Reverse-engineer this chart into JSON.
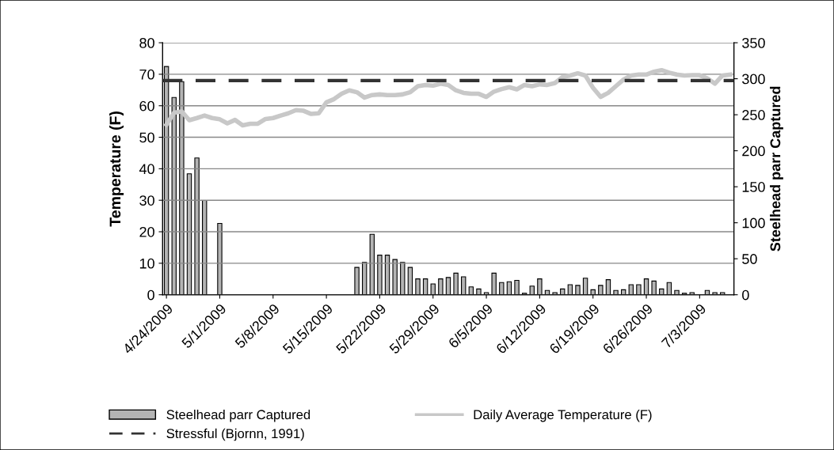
{
  "chart_data": {
    "type": "bar",
    "ylabel": "Temperature (F)",
    "y2label": "Steelhead parr Captured",
    "x": [
      "2009-04-24",
      "2009-04-25",
      "2009-04-26",
      "2009-04-27",
      "2009-04-28",
      "2009-04-29",
      "2009-04-30",
      "2009-05-01",
      "2009-05-02",
      "2009-05-03",
      "2009-05-04",
      "2009-05-05",
      "2009-05-06",
      "2009-05-07",
      "2009-05-08",
      "2009-05-09",
      "2009-05-10",
      "2009-05-11",
      "2009-05-12",
      "2009-05-13",
      "2009-05-14",
      "2009-05-15",
      "2009-05-16",
      "2009-05-17",
      "2009-05-18",
      "2009-05-19",
      "2009-05-20",
      "2009-05-21",
      "2009-05-22",
      "2009-05-23",
      "2009-05-24",
      "2009-05-25",
      "2009-05-26",
      "2009-05-27",
      "2009-05-28",
      "2009-05-29",
      "2009-05-30",
      "2009-05-31",
      "2009-06-01",
      "2009-06-02",
      "2009-06-03",
      "2009-06-04",
      "2009-06-05",
      "2009-06-06",
      "2009-06-07",
      "2009-06-08",
      "2009-06-09",
      "2009-06-10",
      "2009-06-11",
      "2009-06-12",
      "2009-06-13",
      "2009-06-14",
      "2009-06-15",
      "2009-06-16",
      "2009-06-17",
      "2009-06-18",
      "2009-06-19",
      "2009-06-20",
      "2009-06-21",
      "2009-06-22",
      "2009-06-23",
      "2009-06-24",
      "2009-06-25",
      "2009-06-26",
      "2009-06-27",
      "2009-06-28",
      "2009-06-29",
      "2009-06-30",
      "2009-07-01",
      "2009-07-02",
      "2009-07-03",
      "2009-07-04",
      "2009-07-05",
      "2009-07-06",
      "2009-07-07"
    ],
    "series": [
      {
        "name": "Steelhead parr Captured",
        "axis": "y2",
        "color": "#b4b4b4",
        "values": [
          317,
          274,
          296,
          168,
          190,
          131,
          null,
          99,
          null,
          null,
          null,
          null,
          null,
          null,
          null,
          null,
          null,
          null,
          null,
          null,
          null,
          null,
          null,
          null,
          null,
          38,
          45,
          84,
          55,
          55,
          49,
          45,
          38,
          22,
          22,
          15,
          22,
          24,
          30,
          25,
          11,
          8,
          3,
          30,
          17,
          18,
          20,
          2,
          12,
          22,
          6,
          3,
          8,
          14,
          13,
          23,
          7,
          13,
          21,
          6,
          7,
          14,
          14,
          22,
          19,
          8,
          17,
          6,
          2,
          3,
          null,
          6,
          3,
          3,
          null
        ]
      },
      {
        "name": "Daily Average Temperature (F)",
        "type": "line",
        "color": "#c8c8c8",
        "values": [
          54.0,
          57.8,
          58.2,
          55.4,
          56.1,
          56.9,
          56.1,
          55.7,
          54.4,
          55.5,
          53.8,
          54.3,
          54.3,
          55.8,
          56.1,
          56.9,
          57.6,
          58.6,
          58.4,
          57.4,
          57.6,
          61.1,
          62.1,
          63.8,
          64.9,
          64.3,
          62.6,
          63.4,
          63.6,
          63.4,
          63.4,
          63.6,
          64.3,
          66.2,
          66.6,
          66.4,
          67.0,
          66.6,
          64.9,
          64.1,
          63.8,
          63.8,
          62.8,
          64.5,
          65.3,
          65.9,
          65.2,
          66.6,
          66.2,
          66.8,
          66.6,
          67.2,
          69.1,
          69.6,
          70.3,
          69.6,
          65.7,
          62.8,
          64.1,
          66.2,
          68.3,
          69.6,
          69.9,
          69.9,
          70.8,
          71.3,
          70.5,
          69.9,
          69.6,
          69.7,
          69.7,
          68.7,
          67.0,
          69.6,
          69.9
        ]
      }
    ],
    "ref_lines": [
      {
        "axis": "y",
        "value": 68,
        "label": "Stressful (Bjornn, 1991)",
        "color": "#333333",
        "line_style": "dashed"
      }
    ],
    "xlim": [
      "2009-04-23T12:00",
      "2009-07-07T12:00"
    ],
    "xticks": [
      {
        "value": "2009-04-24",
        "label": "4/24/2009"
      },
      {
        "value": "2009-05-01",
        "label": "5/1/2009"
      },
      {
        "value": "2009-05-08",
        "label": "5/8/2009"
      },
      {
        "value": "2009-05-15",
        "label": "5/15/2009"
      },
      {
        "value": "2009-05-22",
        "label": "5/22/2009"
      },
      {
        "value": "2009-05-29",
        "label": "5/29/2009"
      },
      {
        "value": "2009-06-05",
        "label": "6/5/2009"
      },
      {
        "value": "2009-06-12",
        "label": "6/12/2009"
      },
      {
        "value": "2009-06-19",
        "label": "6/19/2009"
      },
      {
        "value": "2009-06-26",
        "label": "6/26/2009"
      },
      {
        "value": "2009-07-03",
        "label": "7/3/2009"
      }
    ],
    "ylim": [
      0,
      80
    ],
    "yticks": [
      0,
      10,
      20,
      30,
      40,
      50,
      60,
      70,
      80
    ],
    "y2lim": [
      0,
      350
    ],
    "y2ticks": [
      0,
      50,
      100,
      150,
      200,
      250,
      300,
      350
    ],
    "grid": "y",
    "legend": "bottom"
  }
}
